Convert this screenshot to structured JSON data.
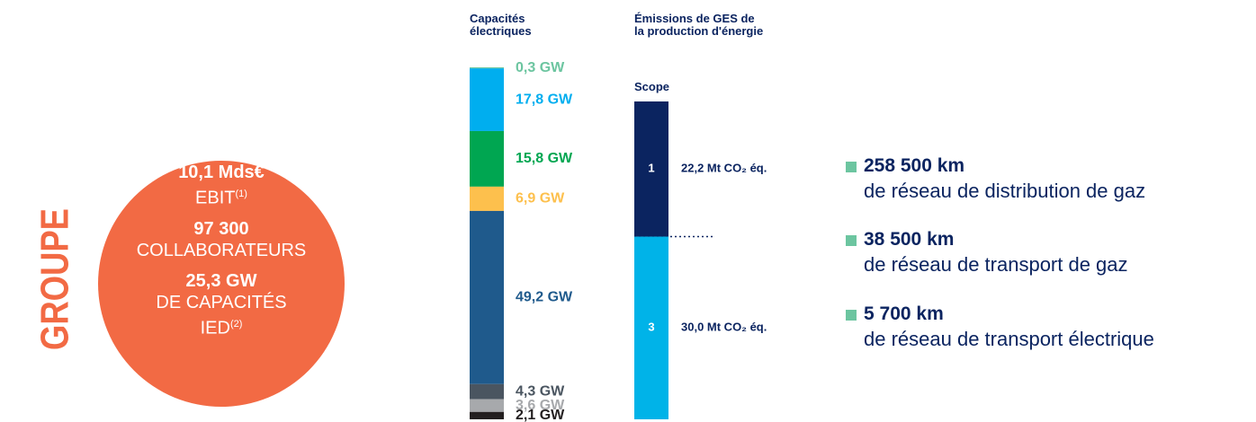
{
  "group": {
    "label": "GROUPE",
    "items": [
      {
        "value": "10,1 Mds€",
        "label": "EBIT",
        "note": "(1)"
      },
      {
        "value": "97 300",
        "label": "COLLABORATEURS"
      },
      {
        "value": "25,3 GW",
        "label": "DE CAPACITÉS IED",
        "note": "(2)"
      }
    ]
  },
  "chart_data": [
    {
      "type": "stacked-bar",
      "title": "Capacités électriques",
      "values": [
        0.3,
        17.8,
        15.8,
        6.9,
        49.2,
        4.3,
        3.6,
        2.1
      ],
      "value_labels": [
        "0,3 GW",
        "17,8 GW",
        "15,8 GW",
        "6,9 GW",
        "49,2 GW",
        "4,3 GW",
        "3,6 GW",
        "2,1 GW"
      ],
      "colors": [
        "#6cc5a0",
        "#00aeef",
        "#00a651",
        "#fdc04d",
        "#1f5a8c",
        "#4a5560",
        "#a7a9ac",
        "#231f20"
      ],
      "ylim": [
        0,
        100
      ]
    },
    {
      "type": "stacked-bar",
      "title": "Émissions de GES de la production d'énergie",
      "subtitle": "Scope",
      "segment_labels": [
        "1",
        "3"
      ],
      "values": [
        22.2,
        30.0
      ],
      "value_labels": [
        "22,2 Mt CO₂ éq.",
        "30,0 Mt CO₂ éq."
      ],
      "colors": [
        "#0b2460",
        "#00b3e8"
      ],
      "ylim": [
        0,
        52.2
      ]
    }
  ],
  "network": [
    {
      "value": "258 500 km",
      "label": "de réseau de distribution de gaz"
    },
    {
      "value": "38 500 km",
      "label": "de réseau de transport de gaz"
    },
    {
      "value": "5 700 km",
      "label": "de réseau de transport électrique"
    }
  ]
}
